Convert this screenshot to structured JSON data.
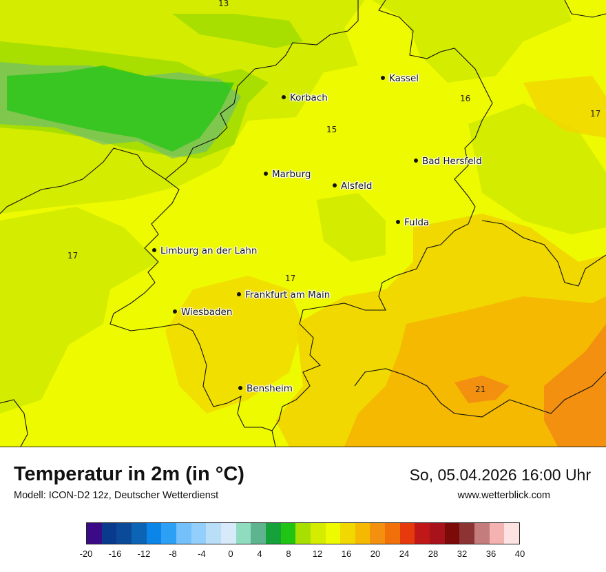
{
  "header": {
    "title": "Temperatur in 2m (in °C)",
    "subtitle": "Modell: ICON-D2 12z, Deutscher Wetterdienst",
    "datetime": "So, 05.04.2026 16:00 Uhr",
    "website": "www.wetterblick.com"
  },
  "map": {
    "cities": [
      {
        "name": "Kassel"
      },
      {
        "name": "Korbach"
      },
      {
        "name": "Bad Hersfeld"
      },
      {
        "name": "Marburg"
      },
      {
        "name": "Alsfeld"
      },
      {
        "name": "Fulda"
      },
      {
        "name": "Limburg an der Lahn"
      },
      {
        "name": "Frankfurt am Main"
      },
      {
        "name": "Wiesbaden"
      },
      {
        "name": "Bensheim"
      }
    ],
    "temperature_labels": [
      "13",
      "16",
      "17",
      "15",
      "17",
      "17",
      "21"
    ]
  },
  "legend": {
    "colors": [
      "#3b0a86",
      "#0a3a8c",
      "#0a4a98",
      "#0b64b4",
      "#0b86e8",
      "#2ca0f4",
      "#74c0fa",
      "#93cffb",
      "#b8def8",
      "#d8eaf9",
      "#90dcc0",
      "#5eb48e",
      "#16a23a",
      "#22c414",
      "#a8de00",
      "#d4ec00",
      "#eefa00",
      "#f1d800",
      "#f4b900",
      "#f39010",
      "#f1700a",
      "#e63a0c",
      "#c01818",
      "#a8121a",
      "#7c0a08",
      "#8c3434",
      "#c47c7c",
      "#f4b2b0",
      "#fde2e2"
    ],
    "tick_labels": [
      "-20",
      "-16",
      "-12",
      "-8",
      "-4",
      "0",
      "4",
      "8",
      "12",
      "16",
      "20",
      "24",
      "28",
      "32",
      "36",
      "40"
    ]
  }
}
